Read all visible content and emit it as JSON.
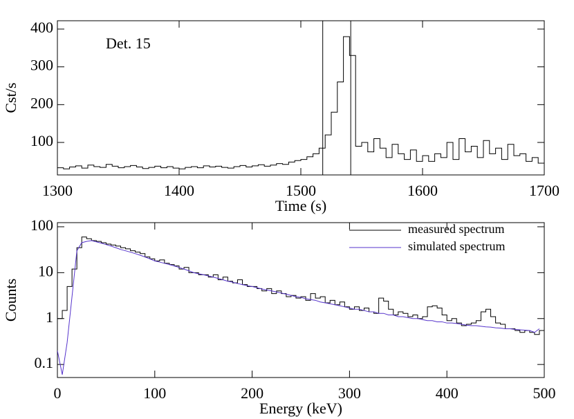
{
  "chart_data": [
    {
      "type": "line",
      "step": true,
      "annotation": "Det. 15",
      "xlabel": "Time (s)",
      "ylabel": "Cst/s",
      "xlim": [
        1300,
        1700
      ],
      "ylim": [
        14,
        422
      ],
      "xticks": [
        1300,
        1400,
        1500,
        1600,
        1700
      ],
      "yticks": [
        100,
        200,
        300,
        400
      ],
      "vlines": [
        1518,
        1541
      ],
      "x": [
        1300,
        1305,
        1310,
        1315,
        1320,
        1325,
        1330,
        1335,
        1340,
        1345,
        1350,
        1355,
        1360,
        1365,
        1370,
        1375,
        1380,
        1385,
        1390,
        1395,
        1400,
        1405,
        1410,
        1415,
        1420,
        1425,
        1430,
        1435,
        1440,
        1445,
        1450,
        1455,
        1460,
        1465,
        1470,
        1475,
        1480,
        1485,
        1490,
        1495,
        1500,
        1505,
        1510,
        1515,
        1520,
        1525,
        1530,
        1535,
        1540,
        1545,
        1550,
        1555,
        1560,
        1565,
        1570,
        1575,
        1580,
        1585,
        1590,
        1595,
        1600,
        1605,
        1610,
        1615,
        1620,
        1625,
        1630,
        1635,
        1640,
        1645,
        1650,
        1655,
        1660,
        1665,
        1670,
        1675,
        1680,
        1685,
        1690,
        1695
      ],
      "series": [
        {
          "color": "#000000",
          "values": [
            33,
            30,
            35,
            38,
            32,
            40,
            36,
            34,
            42,
            37,
            33,
            36,
            39,
            35,
            31,
            34,
            37,
            33,
            36,
            32,
            30,
            34,
            36,
            33,
            38,
            35,
            37,
            34,
            32,
            36,
            39,
            35,
            38,
            41,
            37,
            40,
            44,
            42,
            48,
            52,
            55,
            62,
            70,
            85,
            120,
            180,
            260,
            380,
            330,
            90,
            100,
            75,
            110,
            85,
            60,
            95,
            70,
            55,
            80,
            50,
            65,
            50,
            70,
            60,
            100,
            55,
            110,
            75,
            90,
            60,
            105,
            70,
            85,
            55,
            95,
            65,
            70,
            50,
            60,
            45
          ]
        }
      ]
    },
    {
      "type": "line",
      "ylog": true,
      "xlabel": "Energy (keV)",
      "ylabel": "Counts",
      "legend": "upper right",
      "xlim": [
        0,
        500
      ],
      "ylim": [
        0.052,
        123
      ],
      "xticks": [
        0,
        100,
        200,
        300,
        400,
        500
      ],
      "yticks": [
        0.1,
        1,
        10,
        100
      ],
      "x": [
        0,
        5,
        10,
        15,
        20,
        25,
        30,
        35,
        40,
        45,
        50,
        55,
        60,
        65,
        70,
        75,
        80,
        85,
        90,
        95,
        100,
        105,
        110,
        115,
        120,
        125,
        130,
        135,
        140,
        145,
        150,
        155,
        160,
        165,
        170,
        175,
        180,
        185,
        190,
        195,
        200,
        205,
        210,
        215,
        220,
        225,
        230,
        235,
        240,
        245,
        250,
        255,
        260,
        265,
        270,
        275,
        280,
        285,
        290,
        295,
        300,
        305,
        310,
        315,
        320,
        325,
        330,
        335,
        340,
        345,
        350,
        355,
        360,
        365,
        370,
        375,
        380,
        385,
        390,
        395,
        400,
        405,
        410,
        415,
        420,
        425,
        430,
        435,
        440,
        445,
        450,
        455,
        460,
        465,
        470,
        475,
        480,
        485,
        490,
        495
      ],
      "series": [
        {
          "name": "measured spectrum",
          "color": "#000000",
          "step": true,
          "values": [
            1,
            1.5,
            5,
            12,
            35,
            60,
            55,
            50,
            48,
            45,
            42,
            40,
            38,
            35,
            33,
            30,
            28,
            26,
            22,
            20,
            18,
            19,
            16,
            15,
            14,
            12,
            13,
            10,
            10,
            9,
            9,
            8,
            9,
            7,
            8,
            6.5,
            6,
            7,
            5.5,
            5,
            5,
            4.5,
            4,
            4.5,
            3.5,
            4,
            3.5,
            3,
            3.2,
            2.8,
            3,
            2.5,
            3.5,
            2.8,
            3,
            2.2,
            2.5,
            2,
            2.3,
            1.8,
            1.6,
            1.8,
            1.5,
            1.7,
            1.4,
            1.3,
            2.8,
            2.4,
            1.6,
            1.2,
            1.4,
            1.3,
            1.1,
            1.2,
            1,
            1.1,
            1.8,
            1.9,
            1.7,
            1.2,
            0.9,
            1,
            0.8,
            0.7,
            0.75,
            0.8,
            0.9,
            1.4,
            1.6,
            1.1,
            0.8,
            0.75,
            0.6,
            0.6,
            0.55,
            0.5,
            0.55,
            0.5,
            0.45,
            0.55
          ]
        },
        {
          "name": "simulated spectrum",
          "color": "#5533cc",
          "values": [
            0.2,
            0.06,
            0.3,
            3,
            30,
            45,
            48,
            50,
            47,
            44,
            41,
            38,
            35,
            32,
            30,
            28,
            26,
            24,
            22,
            20,
            18,
            17,
            16,
            15,
            14,
            13,
            12,
            11,
            10,
            9.5,
            9,
            8.5,
            8,
            7.5,
            7,
            6.5,
            6.2,
            5.8,
            5.5,
            5.2,
            5,
            4.7,
            4.4,
            4.2,
            4,
            3.8,
            3.6,
            3.4,
            3.2,
            3,
            2.9,
            2.7,
            2.6,
            2.5,
            2.3,
            2.2,
            2.1,
            2,
            1.9,
            1.8,
            1.7,
            1.6,
            1.6,
            1.5,
            1.4,
            1.4,
            1.3,
            1.3,
            1.2,
            1.2,
            1.1,
            1.1,
            1.05,
            1,
            1,
            0.95,
            0.9,
            0.9,
            0.85,
            0.85,
            0.8,
            0.8,
            0.78,
            0.75,
            0.72,
            0.7,
            0.7,
            0.68,
            0.66,
            0.65,
            0.63,
            0.62,
            0.6,
            0.6,
            0.58,
            0.57,
            0.56,
            0.55,
            0.5,
            0.6
          ]
        }
      ]
    }
  ]
}
